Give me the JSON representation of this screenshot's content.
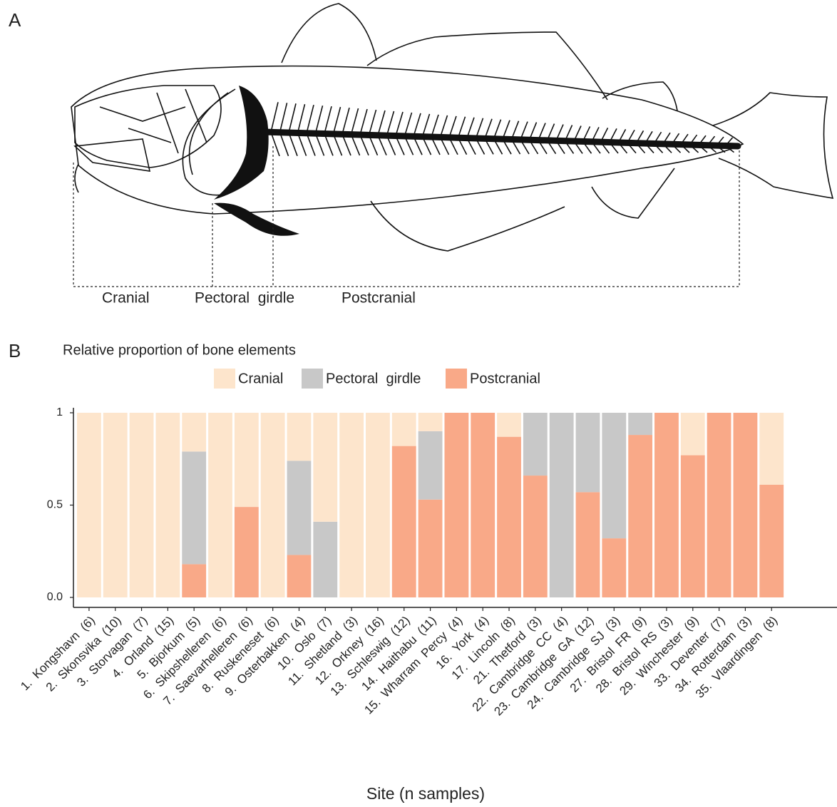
{
  "panel_a": {
    "label": "A",
    "regions": [
      "Cranial",
      "Pectoral  girdle",
      "Postcranial"
    ]
  },
  "panel_b_label": "B",
  "chart_data": {
    "type": "stacked_bar",
    "title": "Relative proportion of bone elements",
    "x_label": "Site (n samples)",
    "categories": [
      "1.  Kongshavn  (6)",
      "2.  Skonsvika  (10)",
      "3.  Storvagan  (7)",
      "4.  Orland  (15)",
      "5.  Bjorkum  (5)",
      "6.  Skipshelleren  (6)",
      "7.  Saevarhelleren  (6)",
      "8.  Ruskeneset  (6)",
      "9.  Osterbakken  (4)",
      "10.  Oslo  (7)",
      "11.  Shetland  (3)",
      "12.  Orkney  (16)",
      "13.  Schleswig  (12)",
      "14.  Haithabu  (11)",
      "15.  Wharram  Percy  (4)",
      "16.  York  (4)",
      "17.  Lincoln  (8)",
      "21.  Thetford  (3)",
      "22.  Cambridge  CC  (4)",
      "23.  Cambridge  GA  (12)",
      "24.  Cambridge  SJ  (3)",
      "27.  Bristol  FR  (9)",
      "28.  Bristol  RS  (3)",
      "29.  Winchester  (9)",
      "33.  Deventer  (7)",
      "34.  Rotterdam  (3)",
      "35.  Vlaardingen  (8)"
    ],
    "series": [
      {
        "name": "Postcranial",
        "color": "#f9a988",
        "values": [
          0,
          0,
          0,
          0,
          0.18,
          0,
          0.49,
          0,
          0.23,
          0,
          0,
          0,
          0.82,
          0.53,
          1,
          1,
          0.87,
          0.66,
          0,
          0.57,
          0.32,
          0.88,
          1,
          0.77,
          1,
          1,
          0.61
        ]
      },
      {
        "name": "Pectoral  girdle",
        "color": "#c8c8c8",
        "values": [
          0,
          0,
          0,
          0,
          0.61,
          0,
          0,
          0,
          0.51,
          0.41,
          0,
          0,
          0,
          0.37,
          0,
          0,
          0,
          0.34,
          1,
          0.43,
          0.68,
          0.12,
          0,
          0,
          0,
          0,
          0
        ]
      },
      {
        "name": "Cranial",
        "color": "#fde5cc",
        "values": [
          1,
          1,
          1,
          1,
          0.21,
          1,
          0.51,
          1,
          0.26,
          0.59,
          1,
          1,
          0.18,
          0.1,
          0,
          0,
          0.13,
          0,
          0,
          0,
          0,
          0,
          0,
          0.23,
          0,
          0,
          0.39
        ]
      }
    ],
    "legend_order": [
      2,
      1,
      0
    ],
    "ylim": [
      0,
      1
    ],
    "yticks": [
      {
        "value": 0,
        "label": "0.0"
      },
      0.5,
      1
    ]
  }
}
